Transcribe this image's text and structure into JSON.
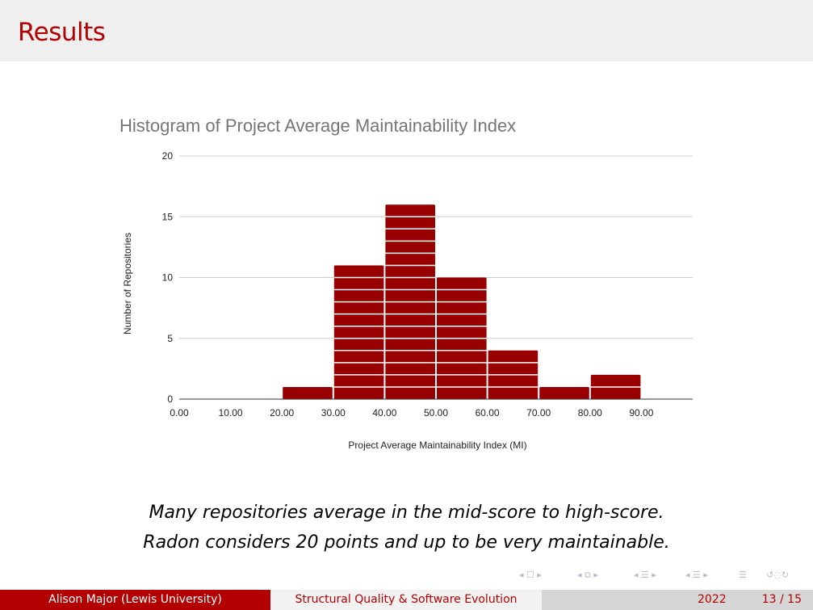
{
  "slide": {
    "title": "Results",
    "caption_line1": "Many repositories average in the mid-score to high-score.",
    "caption_line2": "Radon considers 20 points and up to be very maintainable."
  },
  "footer": {
    "author": "Alison Major  (Lewis University)",
    "talk_title": "Structural Quality & Software Evolution",
    "year": "2022",
    "page": "13 / 15"
  },
  "colors": {
    "title": "#b30000",
    "bar": "#990000",
    "footer_left_bg": "#b30000"
  },
  "chart_data": {
    "type": "bar",
    "title": "Histogram of Project Average Maintainability Index",
    "xlabel": "Project Average Maintainability Index (MI)",
    "ylabel": "Number of Repositories",
    "xlim": [
      0,
      100
    ],
    "ylim": [
      0,
      20
    ],
    "xticks": [
      "0.00",
      "10.00",
      "20.00",
      "30.00",
      "40.00",
      "50.00",
      "60.00",
      "70.00",
      "80.00",
      "90.00"
    ],
    "yticks": [
      "0",
      "5",
      "10",
      "15",
      "20"
    ],
    "bins": [
      {
        "start": 0,
        "end": 10,
        "count": 0
      },
      {
        "start": 10,
        "end": 20,
        "count": 0
      },
      {
        "start": 20,
        "end": 30,
        "count": 1
      },
      {
        "start": 30,
        "end": 40,
        "count": 11
      },
      {
        "start": 40,
        "end": 50,
        "count": 16
      },
      {
        "start": 50,
        "end": 60,
        "count": 10
      },
      {
        "start": 60,
        "end": 70,
        "count": 4
      },
      {
        "start": 70,
        "end": 80,
        "count": 1
      },
      {
        "start": 80,
        "end": 90,
        "count": 2
      }
    ],
    "grid": true,
    "legend": "none"
  }
}
